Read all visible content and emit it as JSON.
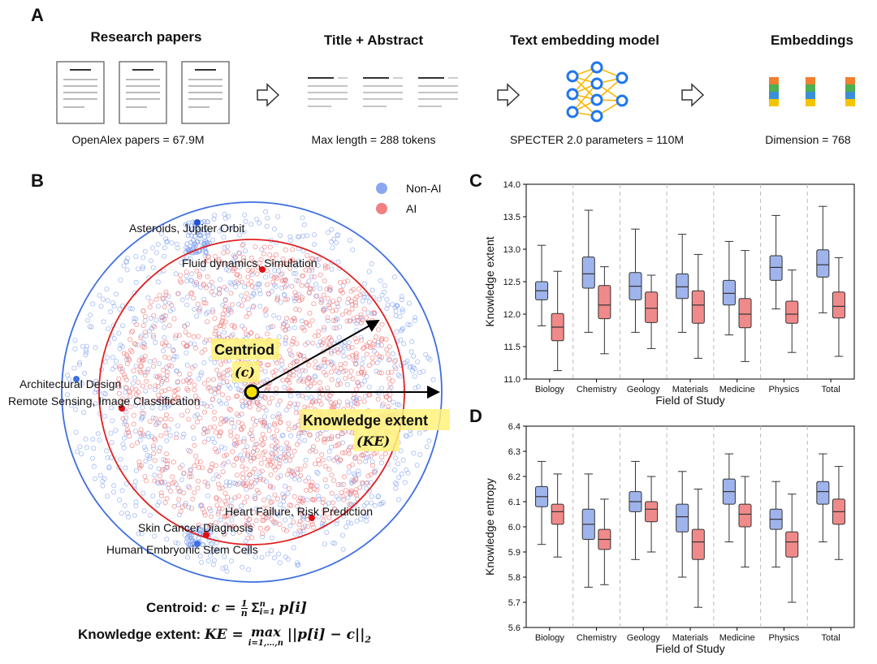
{
  "panels": {
    "a": "A",
    "b": "B",
    "c": "C",
    "d": "D"
  },
  "pipeline": {
    "stages": [
      {
        "title": "Research papers",
        "caption": "OpenAlex papers = 67.9M",
        "icon": "document-icon"
      },
      {
        "title": "Title + Abstract",
        "caption": "Max length = 288 tokens",
        "icon": "text-lines-icon"
      },
      {
        "title": "Text embedding model",
        "caption": "SPECTER 2.0 parameters = 110M",
        "icon": "neural-network-icon"
      },
      {
        "title": "Embeddings",
        "caption": "Dimension = 768",
        "icon": "embedding-vector-icon"
      }
    ],
    "arrow_icon": "right-arrow-icon",
    "colors": {
      "node": "#1f77f0",
      "edge": "#f5b800",
      "emb": [
        "#f08030",
        "#4caf50",
        "#3a8fd8",
        "#f5c400"
      ]
    }
  },
  "scatter": {
    "legend": [
      {
        "label": "Non-AI",
        "color": "#8aa7f0"
      },
      {
        "label": "AI",
        "color": "#f28080"
      }
    ],
    "labels": {
      "asteroids": "Asteroids, Jupiter Orbit",
      "fluid": "Fluid dynamics, Simulation",
      "architectural": "Architectural Design",
      "remote": "Remote Sensing, Image Classification",
      "heart": "Heart Failure, Risk Prediction",
      "skin": "Skin Cancer Diagnosis",
      "embryonic": "Human Embryonic Stem Cells"
    },
    "centroid_label": "Centriod",
    "centroid_symbol": "(c)",
    "extent_label": "Knowledge extent",
    "extent_symbol": "(KE)",
    "colors": {
      "non_ai_circle": "#3f6fe0",
      "ai_circle": "#e02020",
      "highlight": "#fff27a",
      "centroid": "#f5e000"
    }
  },
  "formulas": {
    "centroid": "Centroid: c = (1/n) Σ_{i=1}^{n} p[i]",
    "centroid_label": "Centroid:",
    "centroid_expr": "c = ",
    "centroid_sum": "Σ",
    "centroid_sum_top": "n",
    "centroid_sum_bottom": "i=1",
    "centroid_frac_num": "1",
    "centroid_frac_den": "n",
    "centroid_tail": "p[i]",
    "extent_label": "Knowledge extent:",
    "extent_expr": "KE = ",
    "extent_max": "max",
    "extent_max_sub": "i=1,…,n",
    "extent_tail": "||p[i] − c||",
    "extent_tail_sub": "2"
  },
  "chart_data": [
    {
      "type": "box",
      "panel": "C",
      "title": "",
      "xlabel": "Field of Study",
      "ylabel": "Knowledge extent",
      "ylim": [
        11.0,
        14.0
      ],
      "yticks": [
        11.0,
        11.5,
        12.0,
        12.5,
        13.0,
        13.5,
        14.0
      ],
      "categories": [
        "Biology",
        "Chemistry",
        "Geology",
        "Materials",
        "Medicine",
        "Physics",
        "Total"
      ],
      "series": [
        {
          "name": "Non-AI",
          "color": "#9fb4ec",
          "boxes": [
            {
              "min": 11.82,
              "q1": 12.22,
              "median": 12.36,
              "q3": 12.5,
              "max": 13.06
            },
            {
              "min": 11.72,
              "q1": 12.4,
              "median": 12.62,
              "q3": 12.88,
              "max": 13.6
            },
            {
              "min": 11.72,
              "q1": 12.22,
              "median": 12.43,
              "q3": 12.64,
              "max": 13.31
            },
            {
              "min": 11.72,
              "q1": 12.24,
              "median": 12.42,
              "q3": 12.62,
              "max": 13.23
            },
            {
              "min": 11.68,
              "q1": 12.14,
              "median": 12.32,
              "q3": 12.52,
              "max": 13.12
            },
            {
              "min": 12.08,
              "q1": 12.52,
              "median": 12.72,
              "q3": 12.9,
              "max": 13.52
            },
            {
              "min": 12.02,
              "q1": 12.57,
              "median": 12.76,
              "q3": 12.99,
              "max": 13.66
            }
          ]
        },
        {
          "name": "AI",
          "color": "#f08a8a",
          "boxes": [
            {
              "min": 11.13,
              "q1": 11.59,
              "median": 11.8,
              "q3": 12.01,
              "max": 12.66
            },
            {
              "min": 11.39,
              "q1": 11.93,
              "median": 12.14,
              "q3": 12.44,
              "max": 12.73
            },
            {
              "min": 11.47,
              "q1": 11.87,
              "median": 12.09,
              "q3": 12.34,
              "max": 12.6
            },
            {
              "min": 11.32,
              "q1": 11.86,
              "median": 12.14,
              "q3": 12.36,
              "max": 12.92
            },
            {
              "min": 11.27,
              "q1": 11.79,
              "median": 12.0,
              "q3": 12.24,
              "max": 12.98
            },
            {
              "min": 11.41,
              "q1": 11.86,
              "median": 12.0,
              "q3": 12.2,
              "max": 12.68
            },
            {
              "min": 11.35,
              "q1": 11.94,
              "median": 12.12,
              "q3": 12.34,
              "max": 12.87
            }
          ]
        }
      ]
    },
    {
      "type": "box",
      "panel": "D",
      "title": "",
      "xlabel": "Field of Study",
      "ylabel": "Knowledge entropy",
      "ylim": [
        5.6,
        6.4
      ],
      "yticks": [
        5.6,
        5.7,
        5.8,
        5.9,
        6.0,
        6.1,
        6.2,
        6.3,
        6.4
      ],
      "categories": [
        "Biology",
        "Chemistry",
        "Geology",
        "Materials",
        "Medicine",
        "Physics",
        "Total"
      ],
      "series": [
        {
          "name": "Non-AI",
          "color": "#9fb4ec",
          "boxes": [
            {
              "min": 5.93,
              "q1": 6.08,
              "median": 6.12,
              "q3": 6.16,
              "max": 6.26
            },
            {
              "min": 5.76,
              "q1": 5.95,
              "median": 6.01,
              "q3": 6.07,
              "max": 6.21
            },
            {
              "min": 5.87,
              "q1": 6.06,
              "median": 6.1,
              "q3": 6.14,
              "max": 6.26
            },
            {
              "min": 5.8,
              "q1": 5.98,
              "median": 6.04,
              "q3": 6.09,
              "max": 6.22
            },
            {
              "min": 5.94,
              "q1": 6.09,
              "median": 6.14,
              "q3": 6.19,
              "max": 6.29
            },
            {
              "min": 5.84,
              "q1": 5.99,
              "median": 6.03,
              "q3": 6.07,
              "max": 6.18
            },
            {
              "min": 5.94,
              "q1": 6.09,
              "median": 6.14,
              "q3": 6.18,
              "max": 6.29
            }
          ]
        },
        {
          "name": "AI",
          "color": "#f08a8a",
          "boxes": [
            {
              "min": 5.88,
              "q1": 6.01,
              "median": 6.06,
              "q3": 6.09,
              "max": 6.21
            },
            {
              "min": 5.77,
              "q1": 5.91,
              "median": 5.95,
              "q3": 5.99,
              "max": 6.11
            },
            {
              "min": 5.9,
              "q1": 6.02,
              "median": 6.07,
              "q3": 6.1,
              "max": 6.2
            },
            {
              "min": 5.68,
              "q1": 5.87,
              "median": 5.94,
              "q3": 5.99,
              "max": 6.15
            },
            {
              "min": 5.84,
              "q1": 6.0,
              "median": 6.05,
              "q3": 6.09,
              "max": 6.2
            },
            {
              "min": 5.7,
              "q1": 5.88,
              "median": 5.94,
              "q3": 5.98,
              "max": 6.13
            },
            {
              "min": 5.87,
              "q1": 6.01,
              "median": 6.06,
              "q3": 6.11,
              "max": 6.24
            }
          ]
        }
      ]
    }
  ]
}
